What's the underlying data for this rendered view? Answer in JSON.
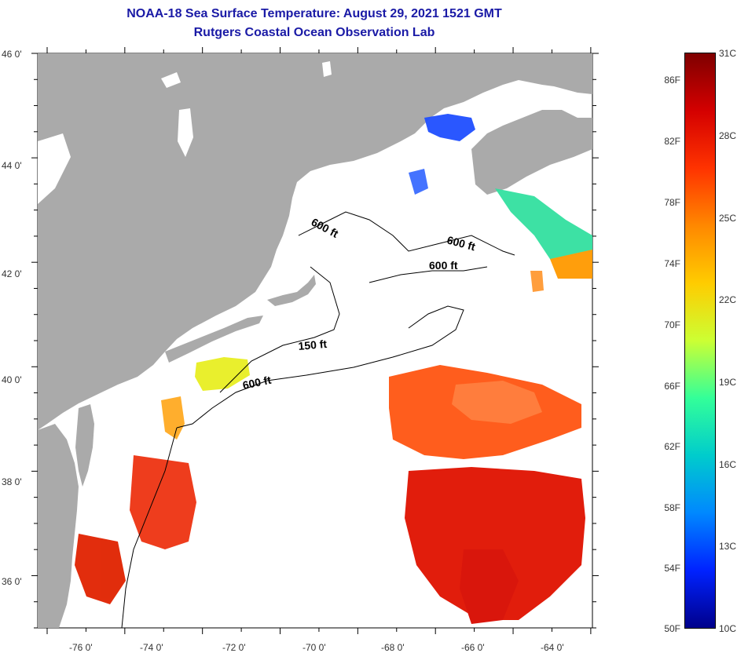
{
  "title": "NOAA-18 Sea Surface Temperature:  August 29, 2021 1521 GMT",
  "subtitle": "Rutgers Coastal Ocean Observation Lab",
  "lon_labels": [
    "-76 0'",
    "-74 0'",
    "-72 0'",
    "-70 0'",
    "-68 0'",
    "-66 0'",
    "-64 0'"
  ],
  "lat_labels": [
    "46 0'",
    "44 0'",
    "42 0'",
    "40 0'",
    "38 0'",
    "36 0'"
  ],
  "contour_labels": [
    "600 ft",
    "600 ft",
    "600 ft",
    "150 ft",
    "600 ft"
  ],
  "colorbar": {
    "fahrenheit": [
      "86F",
      "82F",
      "78F",
      "74F",
      "70F",
      "66F",
      "62F",
      "58F",
      "54F",
      "50F"
    ],
    "celsius": [
      "31C",
      "28C",
      "25C",
      "22C",
      "19C",
      "16C",
      "13C",
      "10C"
    ],
    "colors": [
      "#7f0000",
      "#d40000",
      "#ff3300",
      "#ff8800",
      "#ffcc00",
      "#ccff33",
      "#33ff99",
      "#00cccc",
      "#0088ff",
      "#0022ff",
      "#00008b"
    ]
  },
  "colors": {
    "land": "#aaaaaa",
    "ocean": "#ffffff",
    "title": "#1a1aa6"
  }
}
